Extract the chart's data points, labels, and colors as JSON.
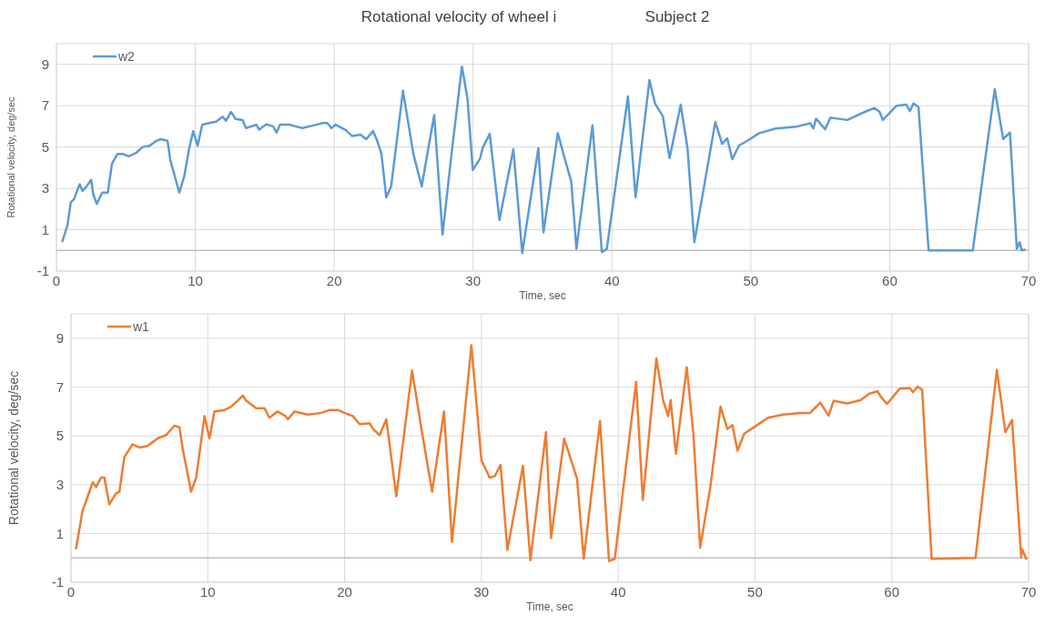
{
  "chart_data": [
    {
      "type": "line",
      "title": "Rotational velocity of wheel i",
      "subtitle": "Subject 2",
      "xlabel": "Time, sec",
      "ylabel": "Rotational velocity, deg/sec",
      "xlim": [
        0,
        70
      ],
      "xticks": [
        0,
        10,
        20,
        30,
        40,
        50,
        60,
        70
      ],
      "ylim": [
        -1,
        10
      ],
      "yticks": [
        -1,
        1,
        3,
        5,
        7,
        9
      ],
      "grid": true,
      "legend": "top left",
      "marker": "none",
      "line_style": "solid",
      "ref_lines": [
        {
          "axis": "y",
          "value": 0,
          "color": "#bfbfbf"
        }
      ],
      "series": [
        {
          "name": "w2",
          "color": "#5b9bd5",
          "x": [
            0.43,
            0.8,
            1.03,
            1.27,
            1.44,
            1.68,
            1.87,
            2.1,
            2.5,
            2.65,
            2.9,
            3.3,
            3.7,
            4.0,
            4.4,
            4.76,
            5.2,
            5.7,
            6.2,
            6.7,
            7.2,
            7.5,
            8.0,
            8.2,
            8.85,
            9.2,
            9.57,
            9.85,
            10.17,
            10.5,
            11.0,
            11.5,
            11.97,
            12.2,
            12.57,
            12.9,
            13.4,
            13.65,
            14.4,
            14.6,
            15.1,
            15.6,
            15.85,
            16.1,
            16.8,
            17.7,
            18.7,
            19.2,
            19.5,
            19.8,
            20.1,
            20.8,
            21.3,
            21.9,
            22.3,
            22.8,
            23.1,
            23.4,
            23.75,
            24.1,
            24.95,
            25.7,
            26.3,
            27.2,
            27.8,
            28.5,
            29.2,
            29.6,
            29.98,
            30.5,
            30.7,
            31.2,
            31.9,
            32.9,
            33.54,
            34.7,
            35.07,
            36.1,
            36.6,
            37.07,
            37.44,
            38.6,
            39.27,
            39.63,
            41.15,
            41.7,
            42.7,
            43.1,
            43.66,
            44.15,
            44.95,
            45.44,
            45.93,
            47.44,
            47.93,
            48.3,
            48.66,
            49.15,
            49.88,
            50.6,
            51.8,
            53.3,
            54.27,
            54.5,
            54.7,
            55.35,
            55.73,
            56.95,
            58.17,
            58.9,
            59.27,
            59.5,
            60.5,
            61.2,
            61.46,
            61.7,
            62.07,
            62.8,
            65.98,
            67.56,
            68.17,
            68.66,
            69.15,
            69.35,
            69.5,
            69.7
          ],
          "values": [
            0.45,
            1.23,
            2.33,
            2.48,
            2.8,
            3.2,
            2.88,
            3.03,
            3.42,
            2.72,
            2.25,
            2.8,
            2.8,
            4.2,
            4.67,
            4.67,
            4.55,
            4.7,
            5.0,
            5.06,
            5.3,
            5.38,
            5.3,
            4.36,
            2.8,
            3.58,
            4.98,
            5.77,
            5.06,
            6.08,
            6.16,
            6.23,
            6.47,
            6.27,
            6.7,
            6.36,
            6.3,
            5.92,
            6.08,
            5.84,
            6.1,
            6.0,
            5.7,
            6.08,
            6.08,
            5.92,
            6.08,
            6.16,
            6.16,
            5.92,
            6.08,
            5.84,
            5.53,
            5.6,
            5.38,
            5.77,
            5.3,
            4.67,
            2.56,
            3.1,
            7.72,
            4.67,
            3.1,
            6.55,
            0.77,
            4.98,
            8.89,
            7.33,
            3.89,
            4.44,
            4.98,
            5.64,
            1.47,
            4.9,
            -0.13,
            4.94,
            0.87,
            5.67,
            4.44,
            3.33,
            0.08,
            6.05,
            -0.08,
            0.08,
            7.45,
            2.57,
            8.24,
            7.1,
            6.5,
            4.47,
            7.05,
            4.94,
            0.4,
            6.21,
            5.15,
            5.42,
            4.41,
            5.07,
            5.36,
            5.67,
            5.9,
            5.99,
            6.15,
            5.9,
            6.37,
            5.86,
            6.42,
            6.31,
            6.69,
            6.89,
            6.7,
            6.31,
            7.0,
            7.05,
            6.74,
            7.1,
            6.94,
            0,
            0,
            7.8,
            5.39,
            5.7,
            0.08,
            0.4,
            0,
            0.03
          ]
        }
      ]
    },
    {
      "type": "line",
      "xlabel": "Time, sec",
      "ylabel": "Rotational velocity, deg/sec",
      "xlim": [
        0,
        70
      ],
      "xticks": [
        0,
        10,
        20,
        30,
        40,
        50,
        60,
        70
      ],
      "ylim": [
        -1,
        10
      ],
      "yticks": [
        -1,
        1,
        3,
        5,
        7,
        9
      ],
      "grid": true,
      "legend": "top left",
      "marker": "none",
      "line_style": "solid",
      "ref_lines": [
        {
          "axis": "y",
          "value": 0,
          "color": "#bfbfbf"
        }
      ],
      "series": [
        {
          "name": "w1",
          "color": "#ed7d31",
          "x": [
            0.37,
            0.85,
            1.1,
            1.34,
            1.59,
            1.83,
            2.2,
            2.44,
            2.8,
            3.3,
            3.54,
            3.9,
            4.5,
            5.0,
            5.6,
            6.34,
            6.95,
            7.56,
            7.93,
            8.17,
            8.78,
            9.15,
            9.76,
            10.12,
            10.49,
            11.22,
            11.7,
            12.2,
            12.56,
            12.8,
            13.54,
            14.15,
            14.5,
            15.1,
            15.7,
            15.85,
            16.34,
            17.3,
            18.3,
            18.9,
            19.5,
            20.0,
            20.6,
            21.1,
            21.83,
            22.07,
            22.56,
            23.05,
            23.78,
            24.93,
            25.73,
            26.4,
            27.27,
            27.85,
            29.27,
            30.0,
            30.6,
            30.98,
            31.4,
            31.9,
            33.04,
            33.58,
            34.72,
            35.09,
            36.05,
            36.99,
            37.48,
            38.67,
            39.33,
            39.75,
            41.31,
            41.8,
            42.79,
            43.28,
            43.65,
            43.83,
            44.22,
            45.01,
            45.5,
            45.99,
            46.74,
            47.48,
            47.98,
            48.35,
            48.72,
            49.21,
            50.07,
            50.94,
            52.05,
            53.28,
            54.02,
            54.77,
            55.38,
            55.75,
            56.74,
            57.73,
            58.35,
            58.96,
            59.2,
            59.65,
            60.57,
            61.31,
            61.56,
            61.88,
            62.22,
            62.91,
            66.12,
            67.68,
            68.3,
            68.79,
            69.46,
            69.53,
            69.83
          ],
          "values": [
            0.39,
            1.94,
            2.32,
            2.71,
            3.1,
            2.9,
            3.29,
            3.29,
            2.19,
            2.65,
            2.71,
            4.13,
            4.65,
            4.52,
            4.58,
            4.9,
            5.03,
            5.42,
            5.35,
            4.45,
            2.71,
            3.29,
            5.81,
            4.9,
            6.0,
            6.06,
            6.19,
            6.45,
            6.65,
            6.45,
            6.13,
            6.13,
            5.74,
            6.0,
            5.8,
            5.68,
            6.0,
            5.87,
            5.94,
            6.06,
            6.06,
            5.94,
            5.81,
            5.48,
            5.52,
            5.29,
            5.03,
            5.68,
            2.52,
            7.68,
            4.9,
            2.71,
            6.0,
            0.65,
            8.71,
            4.0,
            3.29,
            3.35,
            3.81,
            0.32,
            3.77,
            -0.1,
            5.15,
            0.81,
            4.89,
            3.25,
            -0.04,
            5.61,
            -0.13,
            -0.04,
            7.21,
            2.37,
            8.17,
            6.47,
            5.81,
            6.47,
            4.26,
            7.81,
            5.05,
            0.42,
            2.92,
            6.2,
            5.28,
            5.44,
            4.39,
            5.09,
            5.41,
            5.74,
            5.87,
            5.94,
            5.94,
            6.36,
            5.83,
            6.44,
            6.33,
            6.47,
            6.73,
            6.83,
            6.6,
            6.31,
            6.93,
            6.96,
            6.79,
            7.02,
            6.89,
            -0.04,
            0,
            7.71,
            5.15,
            5.65,
            0.03,
            0.35,
            -0.04
          ]
        }
      ]
    }
  ]
}
